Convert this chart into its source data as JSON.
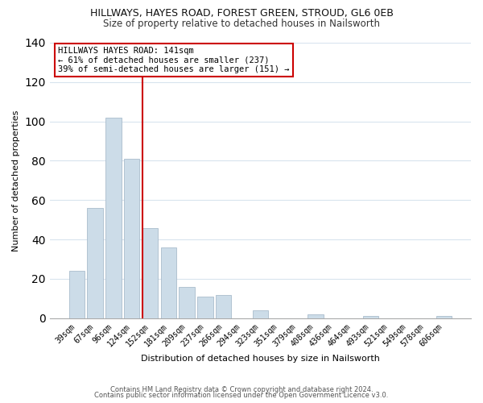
{
  "title": "HILLWAYS, HAYES ROAD, FOREST GREEN, STROUD, GL6 0EB",
  "subtitle": "Size of property relative to detached houses in Nailsworth",
  "xlabel": "Distribution of detached houses by size in Nailsworth",
  "ylabel": "Number of detached properties",
  "bar_labels": [
    "39sqm",
    "67sqm",
    "96sqm",
    "124sqm",
    "152sqm",
    "181sqm",
    "209sqm",
    "237sqm",
    "266sqm",
    "294sqm",
    "323sqm",
    "351sqm",
    "379sqm",
    "408sqm",
    "436sqm",
    "464sqm",
    "493sqm",
    "521sqm",
    "549sqm",
    "578sqm",
    "606sqm"
  ],
  "bar_values": [
    24,
    56,
    102,
    81,
    46,
    36,
    16,
    11,
    12,
    0,
    4,
    0,
    0,
    2,
    0,
    0,
    1,
    0,
    0,
    0,
    1
  ],
  "bar_color": "#ccdce8",
  "bar_edge_color": "#aabccc",
  "vline_color": "#cc0000",
  "annotation_text": "HILLWAYS HAYES ROAD: 141sqm\n← 61% of detached houses are smaller (237)\n39% of semi-detached houses are larger (151) →",
  "annotation_box_color": "#ffffff",
  "annotation_box_edge": "#cc0000",
  "ylim": [
    0,
    140
  ],
  "yticks": [
    0,
    20,
    40,
    60,
    80,
    100,
    120,
    140
  ],
  "footer_line1": "Contains HM Land Registry data © Crown copyright and database right 2024.",
  "footer_line2": "Contains public sector information licensed under the Open Government Licence v3.0.",
  "bg_color": "#ffffff",
  "grid_color": "#d8e4ee",
  "title_fontsize": 9,
  "subtitle_fontsize": 8.5,
  "axis_label_fontsize": 8,
  "tick_fontsize": 7,
  "annotation_fontsize": 7.5,
  "footer_fontsize": 6
}
